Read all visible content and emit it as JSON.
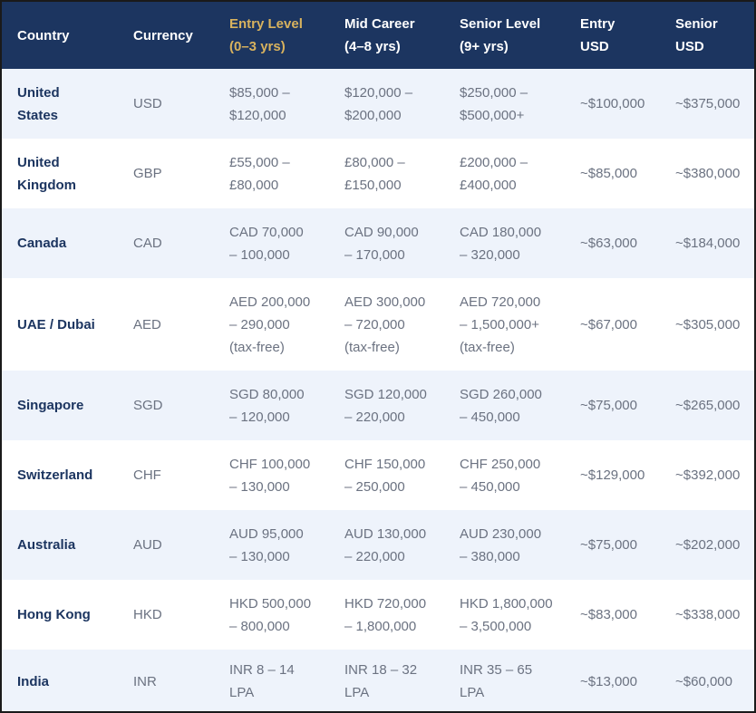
{
  "columns": [
    {
      "line1": "Country",
      "line2": ""
    },
    {
      "line1": "Currency",
      "line2": ""
    },
    {
      "line1": "Entry Level",
      "line2": "(0–3 yrs)"
    },
    {
      "line1": "Mid Career",
      "line2": "(4–8 yrs)"
    },
    {
      "line1": "Senior Level",
      "line2": "(9+ yrs)"
    },
    {
      "line1": "Entry",
      "line2": "USD"
    },
    {
      "line1": "Senior",
      "line2": "USD"
    }
  ],
  "header_highlight_color": "#d8b25e",
  "header_background": "#1c3560",
  "rows": [
    {
      "country": [
        "United",
        "States"
      ],
      "currency": "USD",
      "entry": [
        "$85,000 –",
        "$120,000"
      ],
      "mid": [
        "$120,000 –",
        "$200,000"
      ],
      "senior": [
        "$250,000 –",
        "$500,000+"
      ],
      "entry_usd": "~$100,000",
      "senior_usd": "~$375,000"
    },
    {
      "country": [
        "United",
        "Kingdom"
      ],
      "currency": "GBP",
      "entry": [
        "£55,000 –",
        "£80,000"
      ],
      "mid": [
        "£80,000 –",
        "£150,000"
      ],
      "senior": [
        "£200,000 –",
        "£400,000"
      ],
      "entry_usd": "~$85,000",
      "senior_usd": "~$380,000"
    },
    {
      "country": [
        "Canada"
      ],
      "currency": "CAD",
      "entry": [
        "CAD 70,000",
        "– 100,000"
      ],
      "mid": [
        "CAD 90,000",
        "– 170,000"
      ],
      "senior": [
        "CAD 180,000",
        "– 320,000"
      ],
      "entry_usd": "~$63,000",
      "senior_usd": "~$184,000"
    },
    {
      "country": [
        "UAE / Dubai"
      ],
      "currency": "AED",
      "entry": [
        "AED 200,000",
        "– 290,000",
        "(tax-free)"
      ],
      "mid": [
        "AED 300,000",
        "– 720,000",
        "(tax-free)"
      ],
      "senior": [
        "AED 720,000",
        "– 1,500,000+",
        "(tax-free)"
      ],
      "entry_usd": "~$67,000",
      "senior_usd": "~$305,000"
    },
    {
      "country": [
        "Singapore"
      ],
      "currency": "SGD",
      "entry": [
        "SGD 80,000",
        "– 120,000"
      ],
      "mid": [
        "SGD 120,000",
        "– 220,000"
      ],
      "senior": [
        "SGD 260,000",
        "– 450,000"
      ],
      "entry_usd": "~$75,000",
      "senior_usd": "~$265,000"
    },
    {
      "country": [
        "Switzerland"
      ],
      "currency": "CHF",
      "entry": [
        "CHF 100,000",
        "– 130,000"
      ],
      "mid": [
        "CHF 150,000",
        "– 250,000"
      ],
      "senior": [
        "CHF 250,000",
        "– 450,000"
      ],
      "entry_usd": "~$129,000",
      "senior_usd": "~$392,000"
    },
    {
      "country": [
        "Australia"
      ],
      "currency": "AUD",
      "entry": [
        "AUD 95,000",
        "– 130,000"
      ],
      "mid": [
        "AUD 130,000",
        "– 220,000"
      ],
      "senior": [
        "AUD 230,000",
        "– 380,000"
      ],
      "entry_usd": "~$75,000",
      "senior_usd": "~$202,000"
    },
    {
      "country": [
        "Hong Kong"
      ],
      "currency": "HKD",
      "entry": [
        "HKD 500,000",
        "– 800,000"
      ],
      "mid": [
        "HKD 720,000",
        "– 1,800,000"
      ],
      "senior": [
        "HKD 1,800,000",
        "– 3,500,000"
      ],
      "entry_usd": "~$83,000",
      "senior_usd": "~$338,000"
    },
    {
      "country": [
        "India"
      ],
      "currency": "INR",
      "entry": [
        "INR 8 – 14",
        "LPA"
      ],
      "mid": [
        "INR 18 – 32",
        "LPA"
      ],
      "senior": [
        "INR 35 – 65",
        "LPA"
      ],
      "entry_usd": "~$13,000",
      "senior_usd": "~$60,000"
    }
  ]
}
